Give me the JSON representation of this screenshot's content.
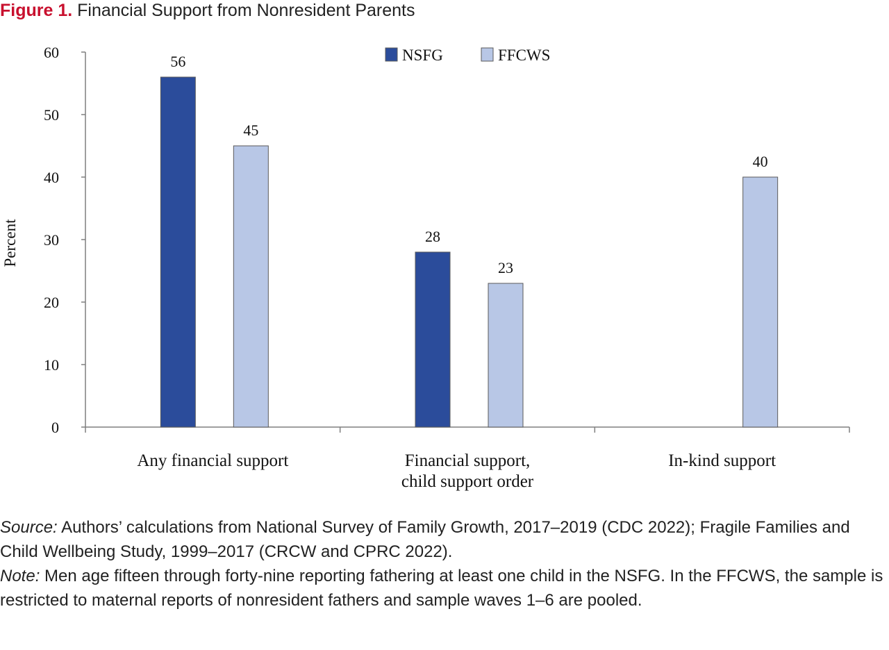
{
  "figure": {
    "label": "Figure 1.",
    "title": "Financial Support from Nonresident Parents"
  },
  "chart_data": {
    "type": "bar",
    "title": "Financial Support from Nonresident Parents",
    "xlabel": "",
    "ylabel": "Percent",
    "ylim": [
      0,
      60
    ],
    "yticks": [
      0,
      10,
      20,
      30,
      40,
      50,
      60
    ],
    "grid": false,
    "legend_position": "top-center",
    "categories": [
      [
        "Any financial support"
      ],
      [
        "Financial support,",
        "child support order"
      ],
      [
        "In-kind support"
      ]
    ],
    "series": [
      {
        "name": "NSFG",
        "color": "#2b4c9b",
        "values": [
          56,
          28,
          null
        ]
      },
      {
        "name": "FFCWS",
        "color": "#b8c7e6",
        "values": [
          45,
          23,
          40
        ]
      }
    ]
  },
  "notes": {
    "source_label": "Source:",
    "source_text": " Authors’ calculations from National Survey of Family Growth, 2017–2019 (CDC 2022); Fragile Families and Child Wellbeing Study, 1999–2017 (CRCW and CPRC 2022).",
    "note_label": "Note:",
    "note_text": " Men age fifteen through forty-nine reporting fathering at least one child in the NSFG. In the FFCWS, the sample is restricted to maternal reports of nonresident fathers and sample waves 1–6 are pooled."
  }
}
